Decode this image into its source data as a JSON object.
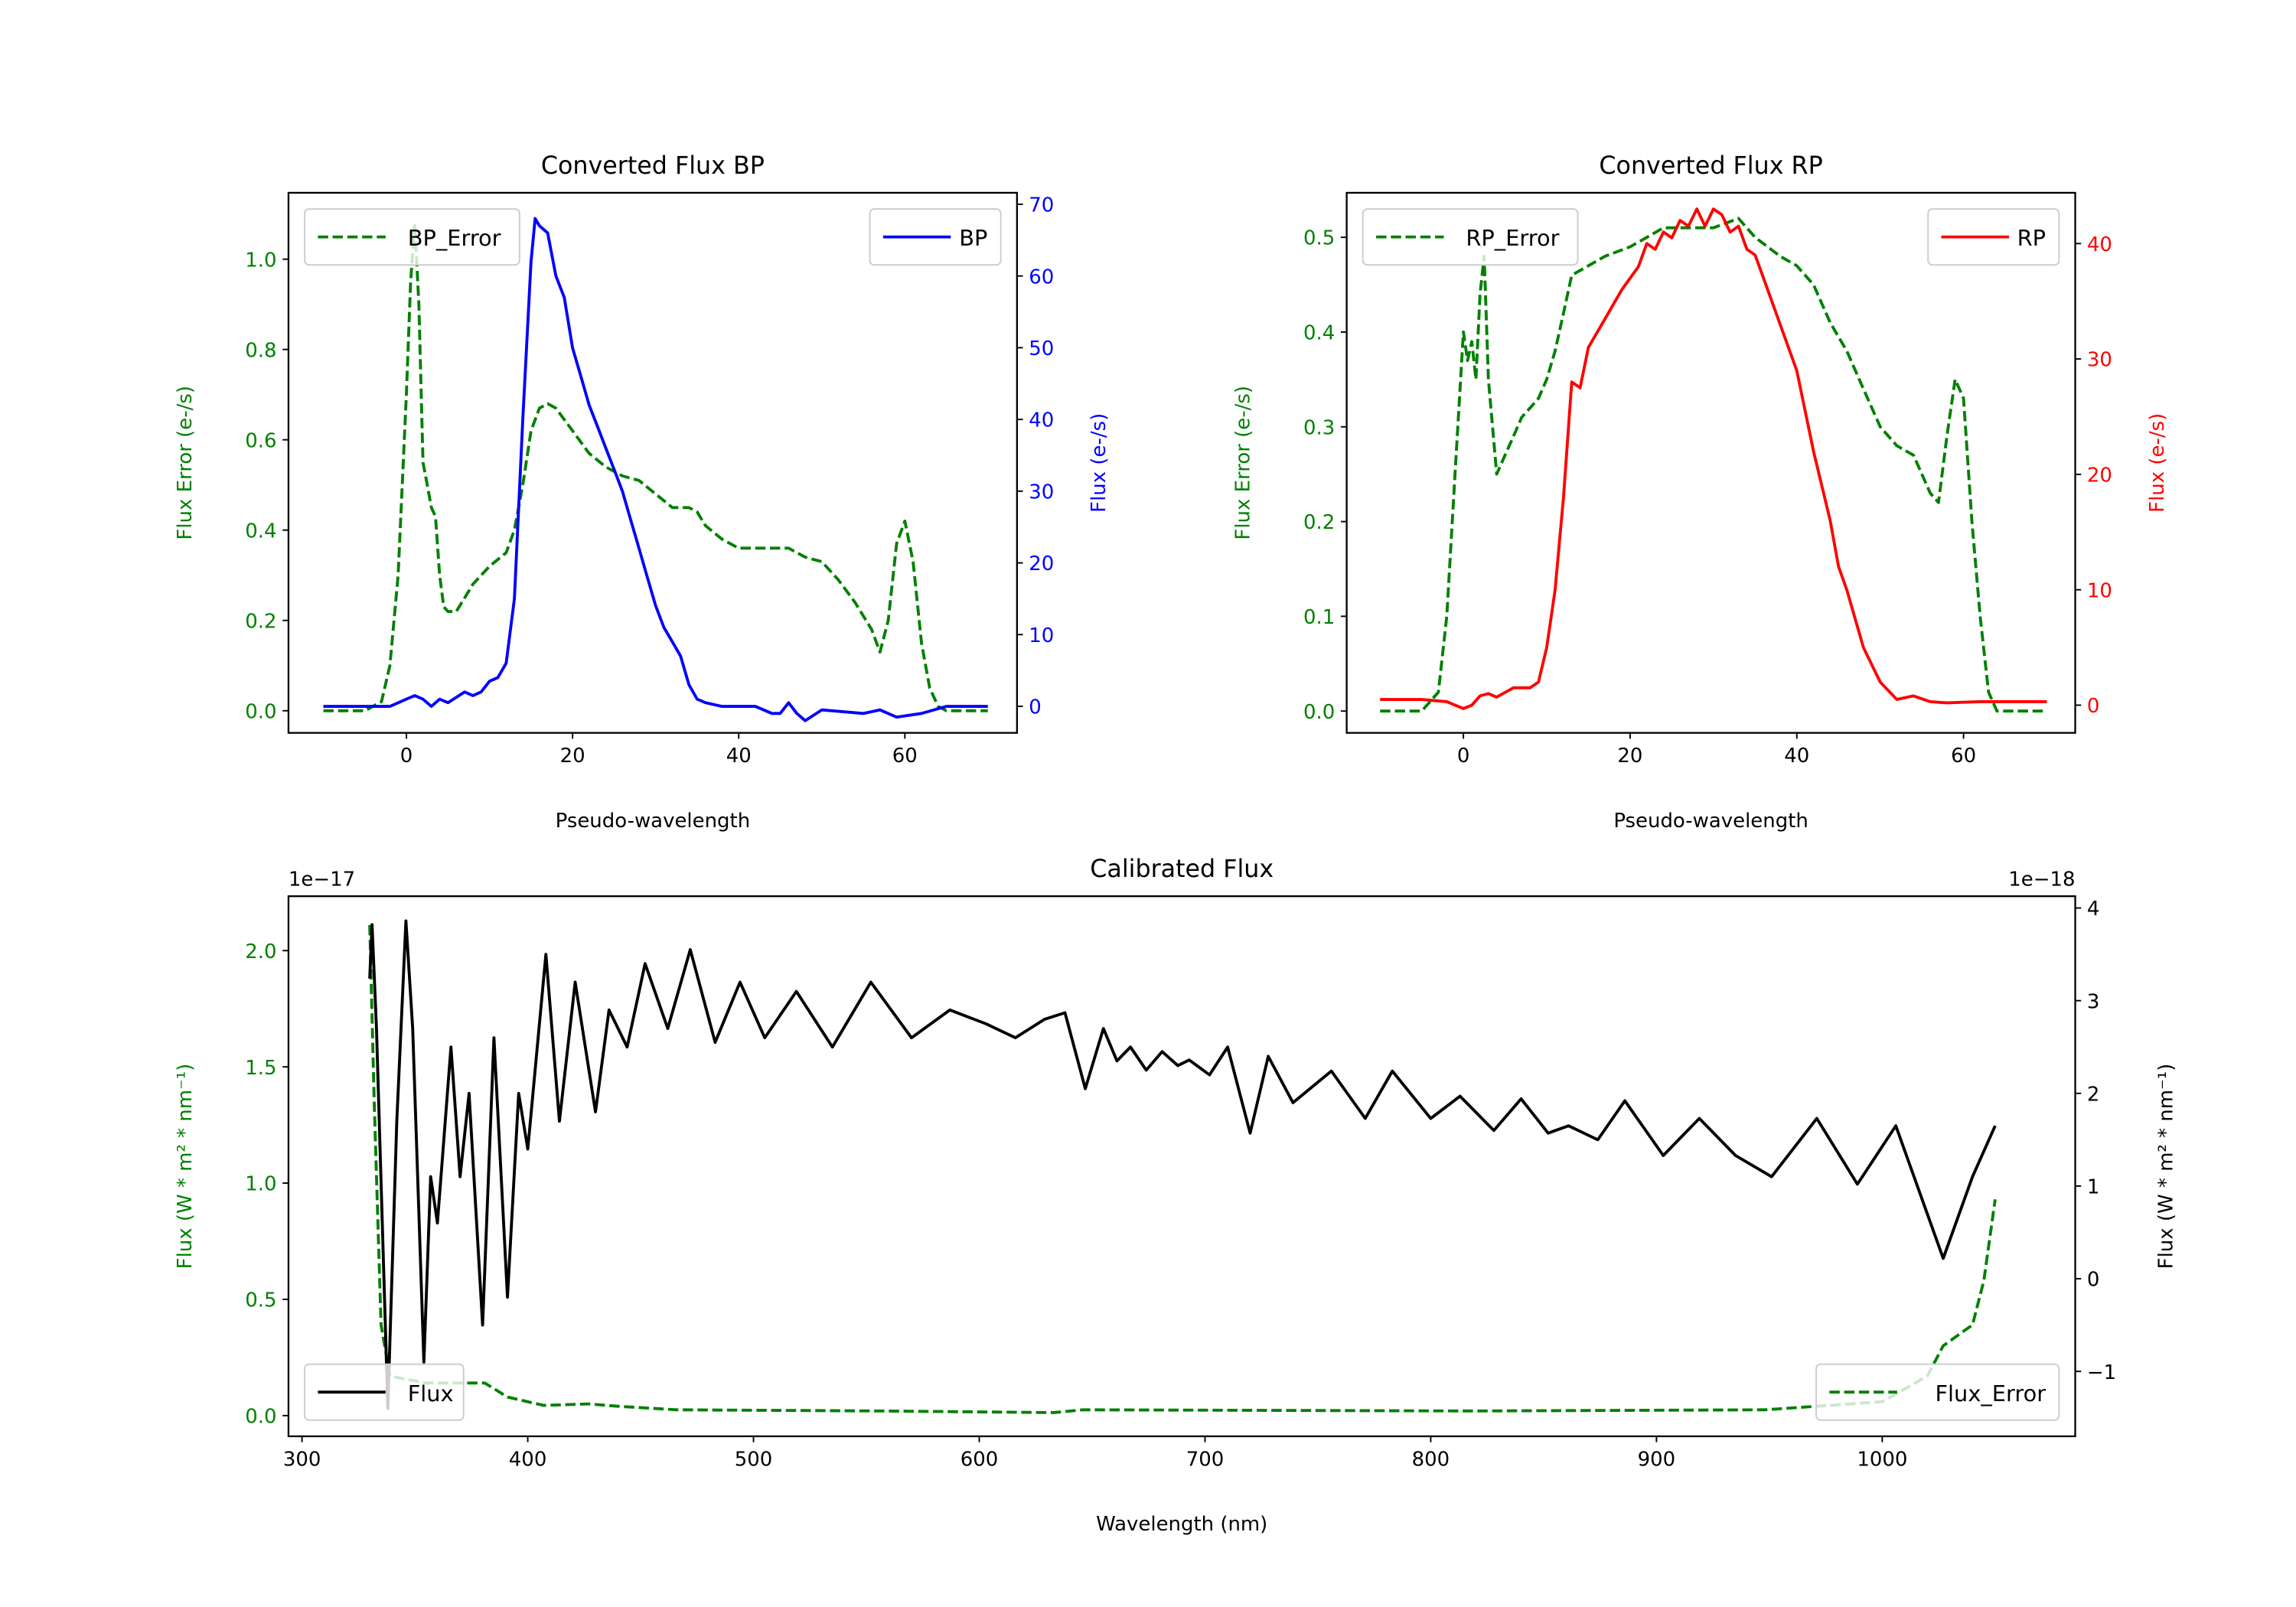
{
  "chart_data": [
    {
      "id": "bp",
      "type": "line",
      "title": "Converted Flux BP",
      "xlabel": "Pseudo-wavelength",
      "xlim": [
        -14.2,
        73.5
      ],
      "xticks": [
        0,
        20,
        40,
        60
      ],
      "left": {
        "ylabel": "Flux Error (e-/s)",
        "color": "#008000",
        "ylim": [
          -0.049,
          1.147
        ],
        "yticks": [
          0.0,
          0.2,
          0.4,
          0.6,
          0.8,
          1.0
        ],
        "decimals": 1
      },
      "right": {
        "ylabel": "Flux (e-/s)",
        "color": "#0000ff",
        "ylim": [
          -3.7,
          71.6
        ],
        "yticks": [
          0,
          10,
          20,
          30,
          40,
          50,
          60,
          70
        ],
        "decimals": 0
      },
      "series": [
        {
          "name": "BP_Error",
          "axis": "left",
          "style": "dashed",
          "color": "#008000",
          "legend": "upper-left",
          "x": [
            -10,
            -5,
            -3,
            -2,
            -1,
            0,
            0.5,
            1,
            1.5,
            2,
            2.5,
            3,
            3.5,
            4,
            4.5,
            5,
            6,
            7,
            8,
            10,
            12,
            13,
            14,
            15,
            16,
            17,
            18,
            20,
            22,
            24,
            26,
            28,
            30,
            32,
            34,
            35,
            36,
            38,
            40,
            44,
            46,
            48,
            50,
            52,
            54,
            56,
            57,
            58,
            59,
            60,
            61,
            62,
            63,
            64,
            65,
            70
          ],
          "y": [
            0,
            0,
            0.02,
            0.1,
            0.3,
            0.7,
            0.95,
            1.08,
            0.9,
            0.55,
            0.5,
            0.45,
            0.43,
            0.3,
            0.23,
            0.22,
            0.22,
            0.25,
            0.28,
            0.32,
            0.35,
            0.4,
            0.5,
            0.62,
            0.67,
            0.68,
            0.67,
            0.62,
            0.57,
            0.54,
            0.52,
            0.51,
            0.48,
            0.45,
            0.45,
            0.44,
            0.41,
            0.38,
            0.36,
            0.36,
            0.36,
            0.34,
            0.33,
            0.29,
            0.24,
            0.18,
            0.13,
            0.2,
            0.37,
            0.42,
            0.33,
            0.15,
            0.05,
            0.01,
            0,
            0
          ]
        },
        {
          "name": "BP",
          "axis": "right",
          "style": "solid",
          "color": "#0000ff",
          "legend": "upper-right",
          "x": [
            -10,
            -5,
            -2,
            0,
            1,
            2,
            3,
            4,
            5,
            7,
            8,
            9,
            10,
            11,
            12,
            13,
            14,
            15,
            15.5,
            16,
            17,
            18,
            19,
            20,
            21,
            22,
            23,
            24,
            25,
            26,
            27,
            28,
            29,
            30,
            31,
            32,
            33,
            34,
            35,
            36,
            38,
            40,
            42,
            44,
            45,
            46,
            47,
            48,
            50,
            55,
            57,
            59,
            62,
            65,
            70
          ],
          "y": [
            0,
            0,
            0,
            1,
            1.5,
            1,
            0,
            1,
            0.5,
            2,
            1.5,
            2,
            3.5,
            4,
            6,
            15,
            40,
            62,
            68,
            67,
            66,
            60,
            57,
            50,
            46,
            42,
            39,
            36,
            33,
            30,
            26,
            22,
            18,
            14,
            11,
            9,
            7,
            3,
            1,
            0.5,
            0,
            0,
            0,
            -1,
            -1,
            0.5,
            -1,
            -2,
            -0.5,
            -1,
            -0.5,
            -1.5,
            -1,
            0,
            0
          ]
        }
      ]
    },
    {
      "id": "rp",
      "type": "line",
      "title": "Converted Flux RP",
      "xlabel": "Pseudo-wavelength",
      "xlim": [
        -14,
        73.4
      ],
      "xticks": [
        0,
        20,
        40,
        60
      ],
      "left": {
        "ylabel": "Flux Error (e-/s)",
        "color": "#008000",
        "ylim": [
          -0.023,
          0.547
        ],
        "yticks": [
          0.0,
          0.1,
          0.2,
          0.3,
          0.4,
          0.5
        ],
        "decimals": 1
      },
      "right": {
        "ylabel": "Flux (e-/s)",
        "color": "#ff0000",
        "ylim": [
          -2.4,
          44.4
        ],
        "yticks": [
          0,
          10,
          20,
          30,
          40
        ],
        "decimals": 0
      },
      "series": [
        {
          "name": "RP_Error",
          "axis": "left",
          "style": "dashed",
          "color": "#008000",
          "legend": "upper-left",
          "x": [
            -10,
            -5,
            -3,
            -2,
            -1,
            0,
            0.5,
            1,
            1.5,
            2,
            2.5,
            3,
            4,
            5,
            6,
            7,
            8,
            9,
            10,
            11,
            12,
            13,
            15,
            17,
            20,
            22,
            24,
            27,
            30,
            33,
            35,
            38,
            40,
            42,
            44,
            46,
            48,
            50,
            52,
            54,
            55,
            56,
            57,
            58,
            59,
            60,
            61,
            62,
            63,
            64,
            70
          ],
          "y": [
            0,
            0,
            0.02,
            0.1,
            0.25,
            0.4,
            0.37,
            0.39,
            0.35,
            0.44,
            0.48,
            0.35,
            0.25,
            0.27,
            0.29,
            0.31,
            0.32,
            0.33,
            0.35,
            0.38,
            0.42,
            0.46,
            0.47,
            0.48,
            0.49,
            0.5,
            0.51,
            0.51,
            0.51,
            0.52,
            0.5,
            0.48,
            0.47,
            0.45,
            0.41,
            0.38,
            0.34,
            0.3,
            0.28,
            0.27,
            0.25,
            0.23,
            0.22,
            0.29,
            0.35,
            0.33,
            0.2,
            0.1,
            0.02,
            0,
            0
          ]
        },
        {
          "name": "RP",
          "axis": "right",
          "style": "solid",
          "color": "#ff0000",
          "legend": "upper-right",
          "x": [
            -10,
            -5,
            -2,
            0,
            1,
            2,
            3,
            4,
            6,
            8,
            9,
            10,
            11,
            12,
            13,
            14,
            15,
            17,
            19,
            21,
            22,
            23,
            24,
            25,
            26,
            27,
            28,
            29,
            30,
            31,
            32,
            33,
            34,
            35,
            36,
            38,
            40,
            42,
            44,
            45,
            46,
            48,
            50,
            52,
            54,
            56,
            58,
            62,
            70
          ],
          "y": [
            0.5,
            0.5,
            0.3,
            -0.3,
            0,
            0.8,
            1,
            0.7,
            1.5,
            1.5,
            2,
            5,
            10,
            18,
            28,
            27.5,
            31,
            33.5,
            36,
            38,
            40,
            39.5,
            41,
            40.5,
            42,
            41.5,
            43,
            41.5,
            43,
            42.5,
            41,
            41.5,
            39.5,
            39,
            37,
            33,
            29,
            22,
            16,
            12,
            10,
            5,
            2,
            0.5,
            0.8,
            0.3,
            0.2,
            0.3,
            0.3
          ]
        }
      ]
    },
    {
      "id": "cal",
      "type": "line",
      "title": "Calibrated Flux",
      "xlabel": "Wavelength (nm)",
      "xlim": [
        294,
        1085.5
      ],
      "xticks": [
        300,
        400,
        500,
        600,
        700,
        800,
        900,
        1000
      ],
      "left": {
        "ylabel": "Flux (W * m² * nm⁻¹)",
        "color": "#008000",
        "ylim": [
          -0.089,
          2.234
        ],
        "yticks": [
          0.0,
          0.5,
          1.0,
          1.5,
          2.0
        ],
        "decimals": 1,
        "offset_text": "1e−17"
      },
      "right": {
        "ylabel": "Flux (W * m² * nm⁻¹)",
        "color": "#000000",
        "ylim": [
          -1.7,
          4.127
        ],
        "yticks": [
          -1,
          0,
          1,
          2,
          3,
          4
        ],
        "decimals": 0,
        "offset_text": "1e−18"
      },
      "series": [
        {
          "name": "Flux_Error",
          "axis": "left",
          "style": "dashed",
          "color": "#008000",
          "legend": "lower-right",
          "x": [
            330,
            332,
            335,
            339,
            355,
            381,
            391,
            407,
            427,
            440,
            466,
            557,
            633,
            646,
            818,
            948,
            1000,
            1020,
            1027,
            1040,
            1045,
            1050
          ],
          "y": [
            2.11,
            1.34,
            0.39,
            0.17,
            0.14,
            0.14,
            0.08,
            0.044,
            0.05,
            0.04,
            0.025,
            0.02,
            0.013,
            0.025,
            0.02,
            0.025,
            0.06,
            0.17,
            0.3,
            0.39,
            0.58,
            0.93
          ]
        },
        {
          "name": "Flux",
          "axis": "right",
          "style": "solid",
          "color": "#000000",
          "legend": "lower-left",
          "x": [
            330,
            331,
            333,
            338,
            342,
            346,
            349,
            354,
            357,
            360,
            366,
            370,
            374,
            380,
            385,
            391,
            396,
            400,
            408,
            414,
            421,
            430,
            436,
            444,
            452,
            462,
            472,
            483,
            494,
            505,
            519,
            535,
            552,
            570,
            587,
            603,
            616,
            629,
            638,
            647,
            655,
            661,
            667,
            674,
            681,
            688,
            693,
            702,
            710,
            720,
            728,
            739,
            756,
            771,
            783,
            800,
            813,
            828,
            840,
            852,
            861,
            874,
            886,
            903,
            919,
            935,
            951,
            971,
            989,
            1006,
            1027,
            1040,
            1050
          ],
          "y": [
            3.24,
            3.82,
            2.7,
            -1.4,
            1.7,
            3.86,
            2.7,
            -0.9,
            1.1,
            0.6,
            2.5,
            1.1,
            2.0,
            -0.5,
            2.6,
            -0.2,
            2.0,
            1.4,
            3.5,
            1.7,
            3.2,
            1.8,
            2.9,
            2.5,
            3.4,
            2.7,
            3.55,
            2.55,
            3.2,
            2.6,
            3.1,
            2.5,
            3.2,
            2.6,
            2.9,
            2.75,
            2.6,
            2.8,
            2.87,
            2.05,
            2.7,
            2.35,
            2.5,
            2.25,
            2.45,
            2.3,
            2.36,
            2.2,
            2.5,
            1.57,
            2.4,
            1.9,
            2.24,
            1.73,
            2.24,
            1.73,
            1.97,
            1.6,
            1.94,
            1.57,
            1.65,
            1.5,
            1.92,
            1.33,
            1.73,
            1.33,
            1.1,
            1.73,
            1.02,
            1.65,
            0.22,
            1.1,
            1.65
          ]
        }
      ]
    }
  ]
}
